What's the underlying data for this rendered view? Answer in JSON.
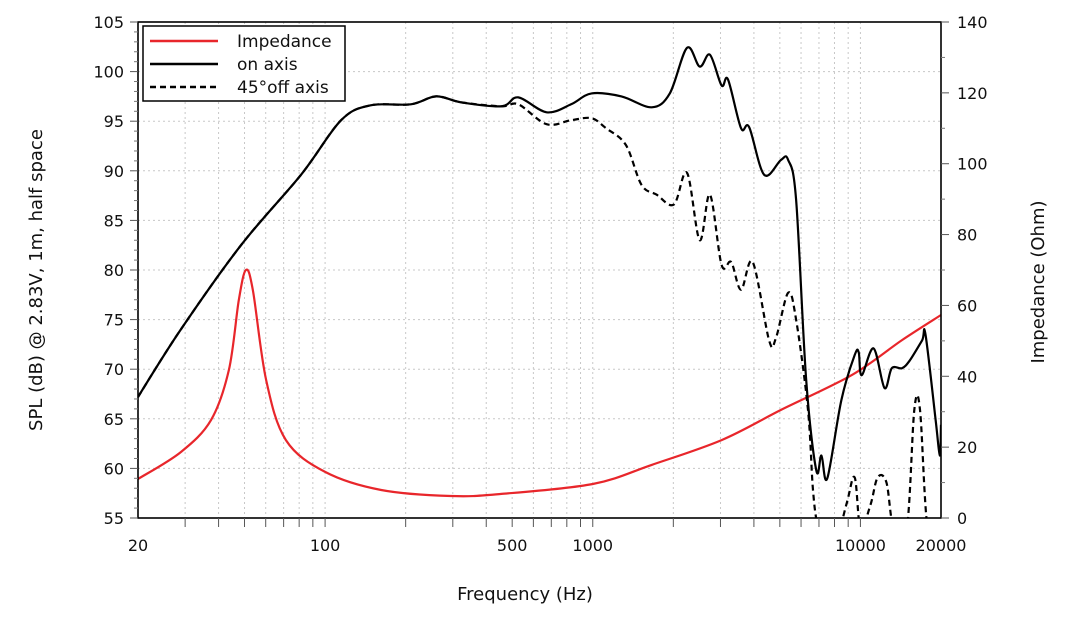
{
  "chart_data": {
    "type": "line",
    "xlabel": "Frequency (Hz)",
    "ylabel": "SPL (dB) @ 2.83V, 1m, half space",
    "y2label": "Impedance (Ohm)",
    "xscale": "log",
    "xlim": [
      20,
      20000
    ],
    "ylim": [
      55,
      105
    ],
    "y2lim": [
      0,
      140
    ],
    "grid": true,
    "legend_position": "top-left",
    "x_ticks": [
      20,
      100,
      500,
      1000,
      10000,
      20000
    ],
    "x_tick_labels": [
      "20",
      "100",
      "500",
      "1000",
      "10000",
      "20000"
    ],
    "y_ticks": [
      55,
      60,
      65,
      70,
      75,
      80,
      85,
      90,
      95,
      100,
      105
    ],
    "y_tick_labels": [
      "55",
      "60",
      "65",
      "70",
      "75",
      "80",
      "85",
      "90",
      "95",
      "100",
      "105"
    ],
    "y2_ticks": [
      0,
      20,
      40,
      60,
      80,
      100,
      120,
      140
    ],
    "y2_tick_labels": [
      "0",
      "20",
      "40",
      "60",
      "80",
      "100",
      "120",
      "140"
    ],
    "series": [
      {
        "name": "Impedance",
        "axis": "right",
        "color": "#e8262b",
        "style": "solid",
        "x": [
          20,
          28.9,
          37.5,
          43.7,
          47.6,
          50.6,
          53.7,
          60.2,
          71.4,
          100,
          162,
          295,
          456,
          1000,
          1660,
          3030,
          5050,
          9300,
          14300,
          20000
        ],
        "y": [
          11.0,
          18.6,
          27.7,
          41.8,
          61.5,
          70.0,
          64.4,
          39.0,
          22.0,
          13.0,
          7.9,
          6.2,
          6.8,
          9.6,
          15.0,
          22.0,
          30.5,
          40.4,
          50.2,
          57.3
        ]
      },
      {
        "name": "on axis",
        "axis": "left",
        "color": "#000000",
        "style": "solid",
        "x": [
          20,
          28.9,
          48.5,
          81.3,
          114.8,
          148,
          209,
          260,
          323,
          456,
          527,
          672,
          830,
          990,
          1280,
          1660,
          1940,
          2250,
          2510,
          2740,
          3030,
          3200,
          3580,
          3840,
          4370,
          5050,
          5370,
          5750,
          6270,
          6840,
          7150,
          7520,
          8490,
          9510,
          9850,
          10110,
          11200,
          12300,
          13100,
          14300,
          15300,
          17000,
          17500,
          19100,
          19800,
          20000
        ],
        "y": [
          67.2,
          74.0,
          82.5,
          89.6,
          95.1,
          96.6,
          96.7,
          97.5,
          96.9,
          96.5,
          97.4,
          95.9,
          96.7,
          97.8,
          97.5,
          96.4,
          97.8,
          102.4,
          100.5,
          101.7,
          98.6,
          99.2,
          94.3,
          94.4,
          89.6,
          91.1,
          91.1,
          87.1,
          68.9,
          59.8,
          61.3,
          59.0,
          66.9,
          71.4,
          71.7,
          69.4,
          72.1,
          68.1,
          70.1,
          70.1,
          70.9,
          72.9,
          73.5,
          64.9,
          61.3,
          64.4
        ]
      },
      {
        "name": "45°off axis",
        "axis": "left",
        "color": "#000000",
        "style": "dashed",
        "x": [
          20,
          28.9,
          48.5,
          81.3,
          114.8,
          148,
          209,
          260,
          323,
          456,
          527,
          672,
          830,
          990,
          1120,
          1330,
          1520,
          1730,
          2010,
          2250,
          2510,
          2740,
          3030,
          3290,
          3580,
          3960,
          4560,
          4830,
          5370,
          5750,
          6370,
          6650,
          6940,
          7600,
          8850,
          9510,
          10000,
          10900,
          11600,
          12500,
          13300,
          14900,
          15900,
          16700,
          17800,
          20000
        ],
        "y": [
          67.2,
          74.0,
          82.5,
          89.6,
          95.1,
          96.6,
          96.7,
          97.5,
          96.9,
          96.5,
          96.7,
          94.7,
          95.1,
          95.3,
          94.3,
          92.6,
          88.6,
          87.6,
          86.6,
          89.8,
          83.0,
          87.6,
          80.5,
          80.8,
          78.0,
          80.8,
          72.9,
          73.1,
          77.7,
          75.0,
          65.9,
          57.8,
          54.0,
          50.0,
          56.3,
          59.1,
          54.0,
          56.3,
          59.1,
          58.6,
          54.0,
          54.0,
          65.9,
          65.9,
          54.0,
          50.0
        ]
      }
    ]
  }
}
